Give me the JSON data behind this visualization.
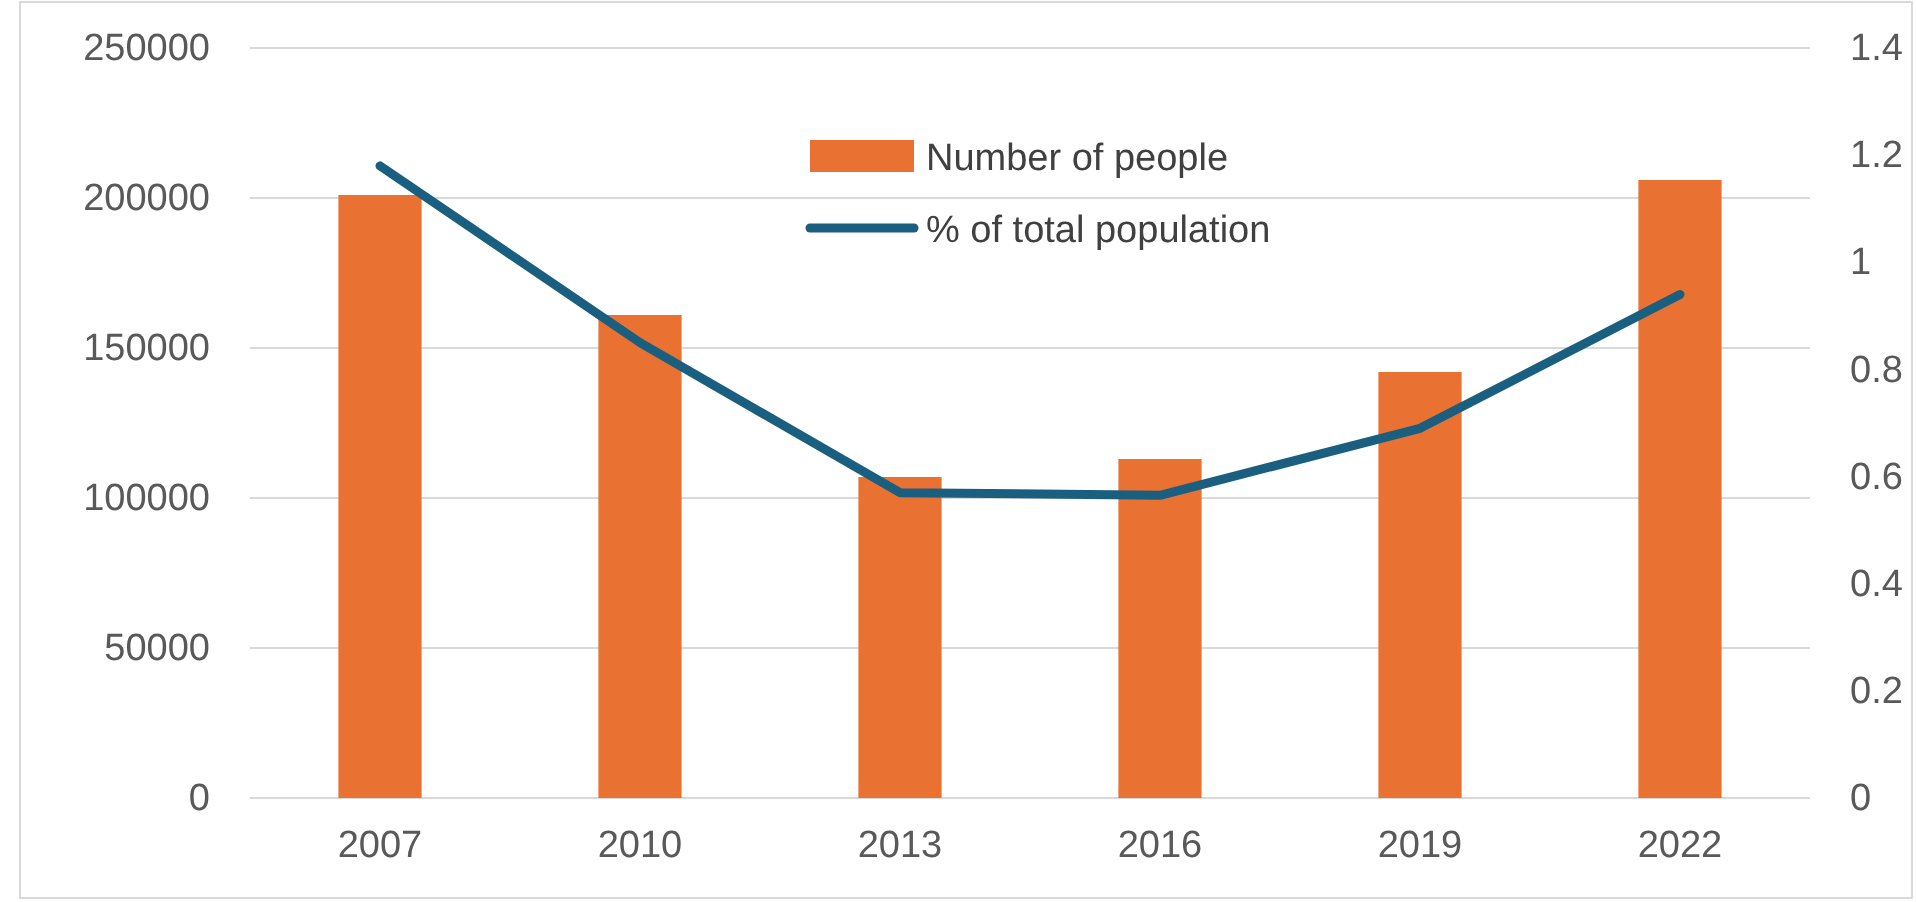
{
  "chart_data": {
    "type": "bar",
    "categories": [
      "2007",
      "2010",
      "2013",
      "2016",
      "2019",
      "2022"
    ],
    "series": [
      {
        "name": "Number of people",
        "color": "#e97132",
        "values": [
          201000,
          161000,
          107000,
          113000,
          142000,
          206000
        ]
      },
      {
        "name": "% of total population",
        "type": "line",
        "axis": "y2",
        "color": "#1a5f7f",
        "values": [
          1.18,
          0.85,
          0.57,
          0.565,
          0.69,
          0.94
        ]
      }
    ],
    "ylim": [
      0,
      250000
    ],
    "yticks": [
      0,
      50000,
      100000,
      150000,
      200000,
      250000
    ],
    "y2lim": [
      0,
      1.4
    ],
    "y2ticks": [
      0,
      0.2,
      0.4,
      0.6,
      0.8,
      1,
      1.2,
      1.4
    ],
    "grid": "y",
    "legend": "top",
    "line_style": "solid",
    "marker": "none"
  }
}
